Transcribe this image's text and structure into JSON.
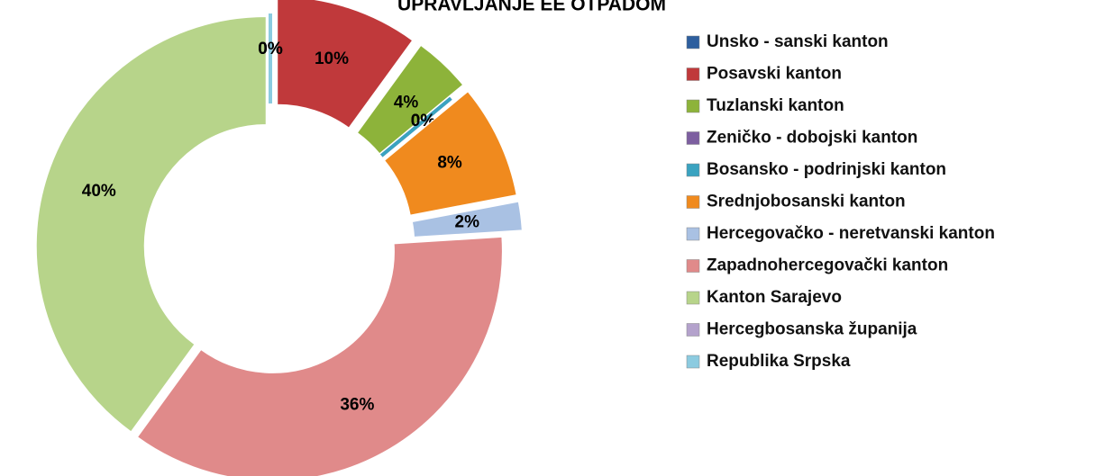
{
  "chart_data": {
    "type": "pie",
    "title": "UPRAVLJANJE EE OTPADOM",
    "categories": [
      "Unsko - sanski kanton",
      "Posavski kanton",
      "Tuzlanski kanton",
      "Zeničko - dobojski kanton",
      "Bosansko - podrinjski kanton",
      "Srednjobosanski kanton",
      "Hercegovačko - neretvanski kanton",
      "Zapadnohercegovački kanton",
      "Kanton Sarajevo",
      "Hercegbosanska županija",
      "Republika Srpska"
    ],
    "values": [
      0,
      10,
      4,
      0,
      0,
      8,
      2,
      36,
      40,
      0,
      0
    ],
    "value_labels": [
      "0%",
      "10%",
      "4%",
      "0%",
      "0%",
      "8%",
      "2%",
      "36%",
      "40%",
      "0%",
      "0%"
    ],
    "colors": [
      "#2e5f9e",
      "#c0393b",
      "#8db33a",
      "#7d5fa0",
      "#3aa3c0",
      "#f08a1e",
      "#a9c1e3",
      "#e08a8a",
      "#b7d48a",
      "#b4a2cc",
      "#8ccbe0"
    ],
    "donut": true,
    "legend": "right"
  }
}
